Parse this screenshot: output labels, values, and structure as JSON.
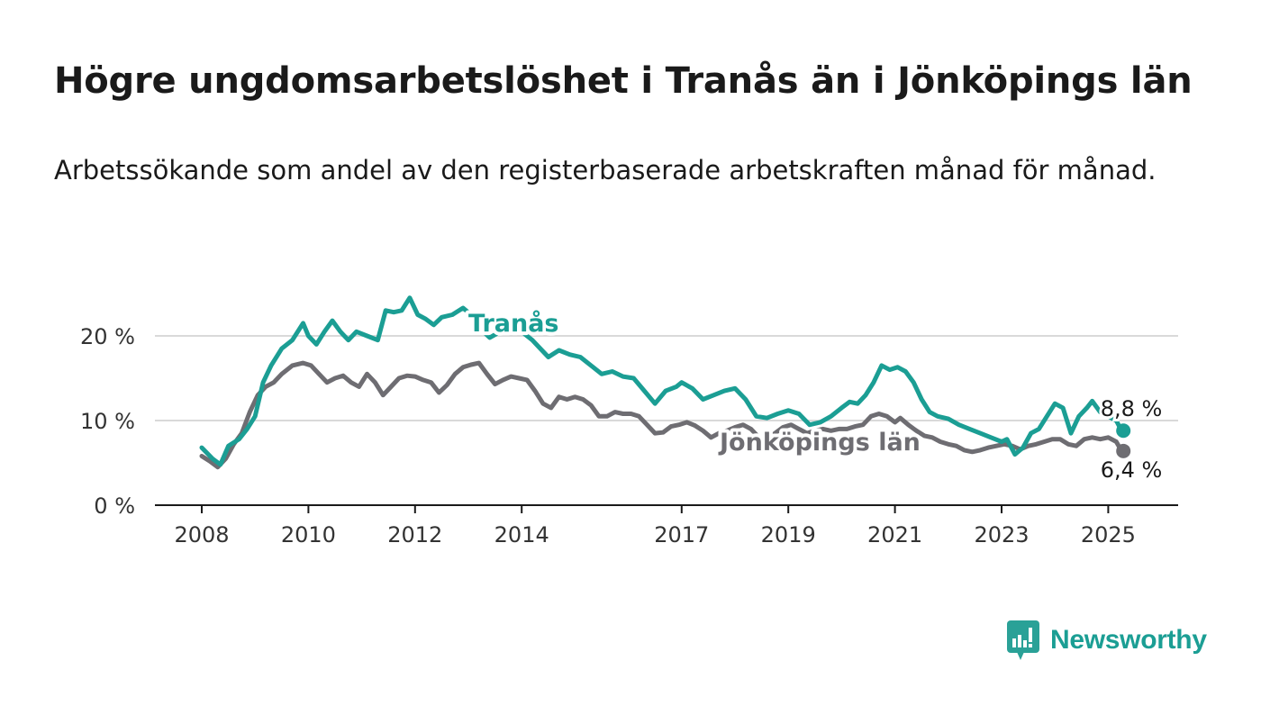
{
  "title": "Högre ungdomsarbetslöshet i Tranås än i Jönköpings län",
  "subtitle": "Arbetssökande som andel av den registerbaserade arbetskraften månad för månad.",
  "brand": {
    "name": "Newsworthy",
    "icon": "newsworthy-chart-icon",
    "color": "#2aa197"
  },
  "chart_data": {
    "type": "line",
    "y_ticks": [
      "0 %",
      "10 %",
      "20 %"
    ],
    "y_tick_values": [
      0,
      10,
      20
    ],
    "ylim": [
      0,
      25
    ],
    "xlim": [
      2008,
      2026
    ],
    "x_ticks": [
      "2008",
      "2010",
      "2012",
      "2014",
      "2017",
      "2019",
      "2021",
      "2023",
      "2025"
    ],
    "x_tick_values": [
      2008,
      2010,
      2012,
      2014,
      2017,
      2019,
      2021,
      2023,
      2025
    ],
    "grid": "horizontal",
    "series": [
      {
        "name": "Tranås",
        "color": "#1b9e94",
        "end_label": "8,8 %",
        "points": [
          [
            2008.0,
            6.8
          ],
          [
            2008.2,
            5.5
          ],
          [
            2008.35,
            4.8
          ],
          [
            2008.5,
            7.0
          ],
          [
            2008.7,
            7.8
          ],
          [
            2008.85,
            9.0
          ],
          [
            2009.0,
            10.5
          ],
          [
            2009.15,
            14.5
          ],
          [
            2009.3,
            16.5
          ],
          [
            2009.5,
            18.5
          ],
          [
            2009.7,
            19.5
          ],
          [
            2009.9,
            21.5
          ],
          [
            2010.0,
            20.0
          ],
          [
            2010.15,
            19.0
          ],
          [
            2010.3,
            20.5
          ],
          [
            2010.45,
            21.8
          ],
          [
            2010.6,
            20.5
          ],
          [
            2010.75,
            19.5
          ],
          [
            2010.9,
            20.5
          ],
          [
            2011.1,
            20.0
          ],
          [
            2011.3,
            19.5
          ],
          [
            2011.45,
            23.0
          ],
          [
            2011.6,
            22.8
          ],
          [
            2011.75,
            23.0
          ],
          [
            2011.9,
            24.5
          ],
          [
            2012.05,
            22.5
          ],
          [
            2012.2,
            22.0
          ],
          [
            2012.35,
            21.3
          ],
          [
            2012.5,
            22.2
          ],
          [
            2012.7,
            22.5
          ],
          [
            2012.9,
            23.3
          ],
          [
            2013.05,
            22.5
          ],
          [
            2013.2,
            21.0
          ],
          [
            2013.4,
            19.8
          ],
          [
            2013.6,
            20.5
          ],
          [
            2013.8,
            21.0
          ],
          [
            2014.0,
            20.5
          ],
          [
            2014.2,
            19.5
          ],
          [
            2014.35,
            18.5
          ],
          [
            2014.5,
            17.5
          ],
          [
            2014.7,
            18.3
          ],
          [
            2014.9,
            17.8
          ],
          [
            2015.1,
            17.5
          ],
          [
            2015.3,
            16.5
          ],
          [
            2015.5,
            15.5
          ],
          [
            2015.7,
            15.8
          ],
          [
            2015.9,
            15.2
          ],
          [
            2016.1,
            15.0
          ],
          [
            2016.3,
            13.5
          ],
          [
            2016.5,
            12.0
          ],
          [
            2016.7,
            13.5
          ],
          [
            2016.9,
            14.0
          ],
          [
            2017.0,
            14.5
          ],
          [
            2017.2,
            13.8
          ],
          [
            2017.4,
            12.5
          ],
          [
            2017.6,
            13.0
          ],
          [
            2017.8,
            13.5
          ],
          [
            2018.0,
            13.8
          ],
          [
            2018.2,
            12.5
          ],
          [
            2018.4,
            10.5
          ],
          [
            2018.6,
            10.3
          ],
          [
            2018.8,
            10.8
          ],
          [
            2019.0,
            11.2
          ],
          [
            2019.2,
            10.8
          ],
          [
            2019.4,
            9.5
          ],
          [
            2019.6,
            9.8
          ],
          [
            2019.8,
            10.5
          ],
          [
            2020.0,
            11.5
          ],
          [
            2020.15,
            12.2
          ],
          [
            2020.3,
            12.0
          ],
          [
            2020.45,
            13.0
          ],
          [
            2020.6,
            14.5
          ],
          [
            2020.75,
            16.5
          ],
          [
            2020.9,
            16.0
          ],
          [
            2021.05,
            16.3
          ],
          [
            2021.2,
            15.8
          ],
          [
            2021.35,
            14.5
          ],
          [
            2021.5,
            12.5
          ],
          [
            2021.65,
            11.0
          ],
          [
            2021.8,
            10.5
          ],
          [
            2022.0,
            10.2
          ],
          [
            2022.2,
            9.5
          ],
          [
            2022.4,
            9.0
          ],
          [
            2022.6,
            8.5
          ],
          [
            2022.8,
            8.0
          ],
          [
            2023.0,
            7.5
          ],
          [
            2023.1,
            7.8
          ],
          [
            2023.25,
            6.0
          ],
          [
            2023.4,
            6.8
          ],
          [
            2023.55,
            8.5
          ],
          [
            2023.7,
            9.0
          ],
          [
            2023.85,
            10.5
          ],
          [
            2024.0,
            12.0
          ],
          [
            2024.15,
            11.5
          ],
          [
            2024.3,
            8.5
          ],
          [
            2024.45,
            10.5
          ],
          [
            2024.6,
            11.5
          ],
          [
            2024.7,
            12.3
          ],
          [
            2024.85,
            11.0
          ],
          [
            2025.15,
            10.0
          ],
          [
            2025.25,
            8.8
          ]
        ]
      },
      {
        "name": "Jönköpings län",
        "color": "#6e6d72",
        "end_label": "6,4 %",
        "points": [
          [
            2008.0,
            5.8
          ],
          [
            2008.15,
            5.2
          ],
          [
            2008.3,
            4.5
          ],
          [
            2008.45,
            5.5
          ],
          [
            2008.6,
            7.2
          ],
          [
            2008.75,
            8.5
          ],
          [
            2008.9,
            11.0
          ],
          [
            2009.05,
            13.0
          ],
          [
            2009.2,
            14.0
          ],
          [
            2009.35,
            14.5
          ],
          [
            2009.5,
            15.5
          ],
          [
            2009.7,
            16.5
          ],
          [
            2009.9,
            16.8
          ],
          [
            2010.05,
            16.5
          ],
          [
            2010.2,
            15.5
          ],
          [
            2010.35,
            14.5
          ],
          [
            2010.5,
            15.0
          ],
          [
            2010.65,
            15.3
          ],
          [
            2010.8,
            14.5
          ],
          [
            2010.95,
            14.0
          ],
          [
            2011.1,
            15.5
          ],
          [
            2011.25,
            14.5
          ],
          [
            2011.4,
            13.0
          ],
          [
            2011.55,
            14.0
          ],
          [
            2011.7,
            15.0
          ],
          [
            2011.85,
            15.3
          ],
          [
            2012.0,
            15.2
          ],
          [
            2012.15,
            14.8
          ],
          [
            2012.3,
            14.5
          ],
          [
            2012.45,
            13.3
          ],
          [
            2012.6,
            14.2
          ],
          [
            2012.75,
            15.5
          ],
          [
            2012.9,
            16.3
          ],
          [
            2013.05,
            16.6
          ],
          [
            2013.2,
            16.8
          ],
          [
            2013.35,
            15.5
          ],
          [
            2013.5,
            14.3
          ],
          [
            2013.65,
            14.8
          ],
          [
            2013.8,
            15.2
          ],
          [
            2013.95,
            15.0
          ],
          [
            2014.1,
            14.8
          ],
          [
            2014.25,
            13.5
          ],
          [
            2014.4,
            12.0
          ],
          [
            2014.55,
            11.5
          ],
          [
            2014.7,
            12.8
          ],
          [
            2014.85,
            12.5
          ],
          [
            2015.0,
            12.8
          ],
          [
            2015.15,
            12.5
          ],
          [
            2015.3,
            11.8
          ],
          [
            2015.45,
            10.5
          ],
          [
            2015.6,
            10.5
          ],
          [
            2015.75,
            11.0
          ],
          [
            2015.9,
            10.8
          ],
          [
            2016.05,
            10.8
          ],
          [
            2016.2,
            10.5
          ],
          [
            2016.35,
            9.5
          ],
          [
            2016.5,
            8.5
          ],
          [
            2016.65,
            8.6
          ],
          [
            2016.8,
            9.3
          ],
          [
            2016.95,
            9.5
          ],
          [
            2017.1,
            9.8
          ],
          [
            2017.25,
            9.4
          ],
          [
            2017.4,
            8.8
          ],
          [
            2017.55,
            8.0
          ],
          [
            2017.7,
            8.5
          ],
          [
            2017.85,
            8.8
          ],
          [
            2018.0,
            9.2
          ],
          [
            2018.15,
            9.5
          ],
          [
            2018.3,
            9.0
          ],
          [
            2018.45,
            8.0
          ],
          [
            2018.6,
            7.8
          ],
          [
            2018.75,
            8.5
          ],
          [
            2018.9,
            9.2
          ],
          [
            2019.05,
            9.5
          ],
          [
            2019.2,
            9.0
          ],
          [
            2019.35,
            8.5
          ],
          [
            2019.5,
            8.8
          ],
          [
            2019.65,
            9.0
          ],
          [
            2019.8,
            8.8
          ],
          [
            2019.95,
            9.0
          ],
          [
            2020.1,
            9.0
          ],
          [
            2020.25,
            9.3
          ],
          [
            2020.4,
            9.5
          ],
          [
            2020.55,
            10.5
          ],
          [
            2020.7,
            10.8
          ],
          [
            2020.85,
            10.5
          ],
          [
            2021.0,
            9.8
          ],
          [
            2021.1,
            10.3
          ],
          [
            2021.25,
            9.5
          ],
          [
            2021.4,
            8.8
          ],
          [
            2021.55,
            8.2
          ],
          [
            2021.7,
            8.0
          ],
          [
            2021.85,
            7.5
          ],
          [
            2022.0,
            7.2
          ],
          [
            2022.15,
            7.0
          ],
          [
            2022.3,
            6.5
          ],
          [
            2022.45,
            6.3
          ],
          [
            2022.6,
            6.5
          ],
          [
            2022.75,
            6.8
          ],
          [
            2022.9,
            7.0
          ],
          [
            2023.05,
            7.2
          ],
          [
            2023.2,
            7.0
          ],
          [
            2023.35,
            6.6
          ],
          [
            2023.5,
            7.0
          ],
          [
            2023.65,
            7.2
          ],
          [
            2023.8,
            7.5
          ],
          [
            2023.95,
            7.8
          ],
          [
            2024.1,
            7.8
          ],
          [
            2024.25,
            7.2
          ],
          [
            2024.4,
            7.0
          ],
          [
            2024.55,
            7.8
          ],
          [
            2024.7,
            8.0
          ],
          [
            2024.85,
            7.8
          ],
          [
            2025.0,
            8.0
          ],
          [
            2025.15,
            7.5
          ],
          [
            2025.25,
            6.4
          ]
        ]
      }
    ]
  }
}
